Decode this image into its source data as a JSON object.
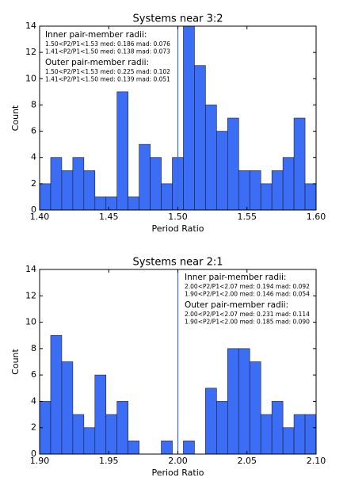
{
  "chart_data": [
    {
      "type": "histogram",
      "title": "Systems near 3:2",
      "x_label": "Period Ratio",
      "y_label": "Count",
      "bins": [
        1.4,
        1.408,
        1.416,
        1.424,
        1.432,
        1.44,
        1.448,
        1.456,
        1.464,
        1.472,
        1.48,
        1.488,
        1.496,
        1.504,
        1.512,
        1.52,
        1.528,
        1.536,
        1.544,
        1.552,
        1.56,
        1.568,
        1.576,
        1.584,
        1.592,
        1.6
      ],
      "values": [
        2,
        4,
        3,
        4,
        3,
        1,
        1,
        9,
        1,
        5,
        4,
        2,
        4,
        14,
        11,
        8,
        6,
        7,
        3,
        3,
        2,
        3,
        4,
        7,
        2
      ],
      "color": "#3b6ef5",
      "edge_color": "#1a1a3a",
      "vline": 1.5,
      "vline_color": "#3a6ad8",
      "xlim": [
        1.4,
        1.6
      ],
      "xticks": [
        {
          "value": 1.4,
          "label": "1.40"
        },
        {
          "value": 1.45,
          "label": "1.45"
        },
        {
          "value": 1.5,
          "label": "1.50"
        },
        {
          "value": 1.55,
          "label": "1.55"
        },
        {
          "value": 1.6,
          "label": "1.60"
        }
      ],
      "ylim": [
        0,
        14
      ],
      "yticks": [
        0,
        2,
        4,
        6,
        8,
        10,
        12,
        14
      ],
      "annotations": [
        {
          "heading": "Inner pair-member radii:",
          "lines": [
            "1.50<P2/P1<1.53 med: 0.186 mad: 0.076",
            "1.41<P2/P1<1.50 med: 0.138 mad: 0.073"
          ]
        },
        {
          "heading": "Outer pair-member radii:",
          "lines": [
            "1.50<P2/P1<1.53 med: 0.225 mad: 0.102",
            "1.41<P2/P1<1.50 med: 0.139 mad: 0.051"
          ]
        }
      ]
    },
    {
      "type": "histogram",
      "title": "Systems near 2:1",
      "x_label": "Period Ratio",
      "y_label": "Count",
      "bins": [
        1.9,
        1.908,
        1.916,
        1.924,
        1.932,
        1.94,
        1.948,
        1.956,
        1.964,
        1.972,
        1.98,
        1.988,
        1.996,
        2.004,
        2.012,
        2.02,
        2.028,
        2.036,
        2.044,
        2.052,
        2.06,
        2.068,
        2.076,
        2.084,
        2.092,
        2.1
      ],
      "values": [
        4,
        9,
        7,
        3,
        2,
        6,
        3,
        4,
        1,
        0,
        0,
        1,
        0,
        1,
        0,
        5,
        4,
        8,
        8,
        7,
        3,
        4,
        2,
        3,
        3
      ],
      "color": "#3b6ef5",
      "edge_color": "#1a1a3a",
      "vline": 2.0,
      "vline_color": "#3a6ad8",
      "xlim": [
        1.9,
        2.1
      ],
      "xticks": [
        {
          "value": 1.9,
          "label": "1.90"
        },
        {
          "value": 1.95,
          "label": "1.95"
        },
        {
          "value": 2.0,
          "label": "2.00"
        },
        {
          "value": 2.05,
          "label": "2.05"
        },
        {
          "value": 2.1,
          "label": "2.10"
        }
      ],
      "ylim": [
        0,
        14
      ],
      "yticks": [
        0,
        2,
        4,
        6,
        8,
        10,
        12,
        14
      ],
      "annotations": [
        {
          "heading": "Inner pair-member radii:",
          "lines": [
            "2.00<P2/P1<2.07 med: 0.194 mad: 0.092",
            "1.90<P2/P1<2.00 med: 0.146 mad: 0.054"
          ]
        },
        {
          "heading": "Outer pair-member radii:",
          "lines": [
            "2.00<P2/P1<2.07 med: 0.231 mad: 0.114",
            "1.90<P2/P1<2.00 med: 0.185 mad: 0.090"
          ]
        }
      ]
    }
  ]
}
